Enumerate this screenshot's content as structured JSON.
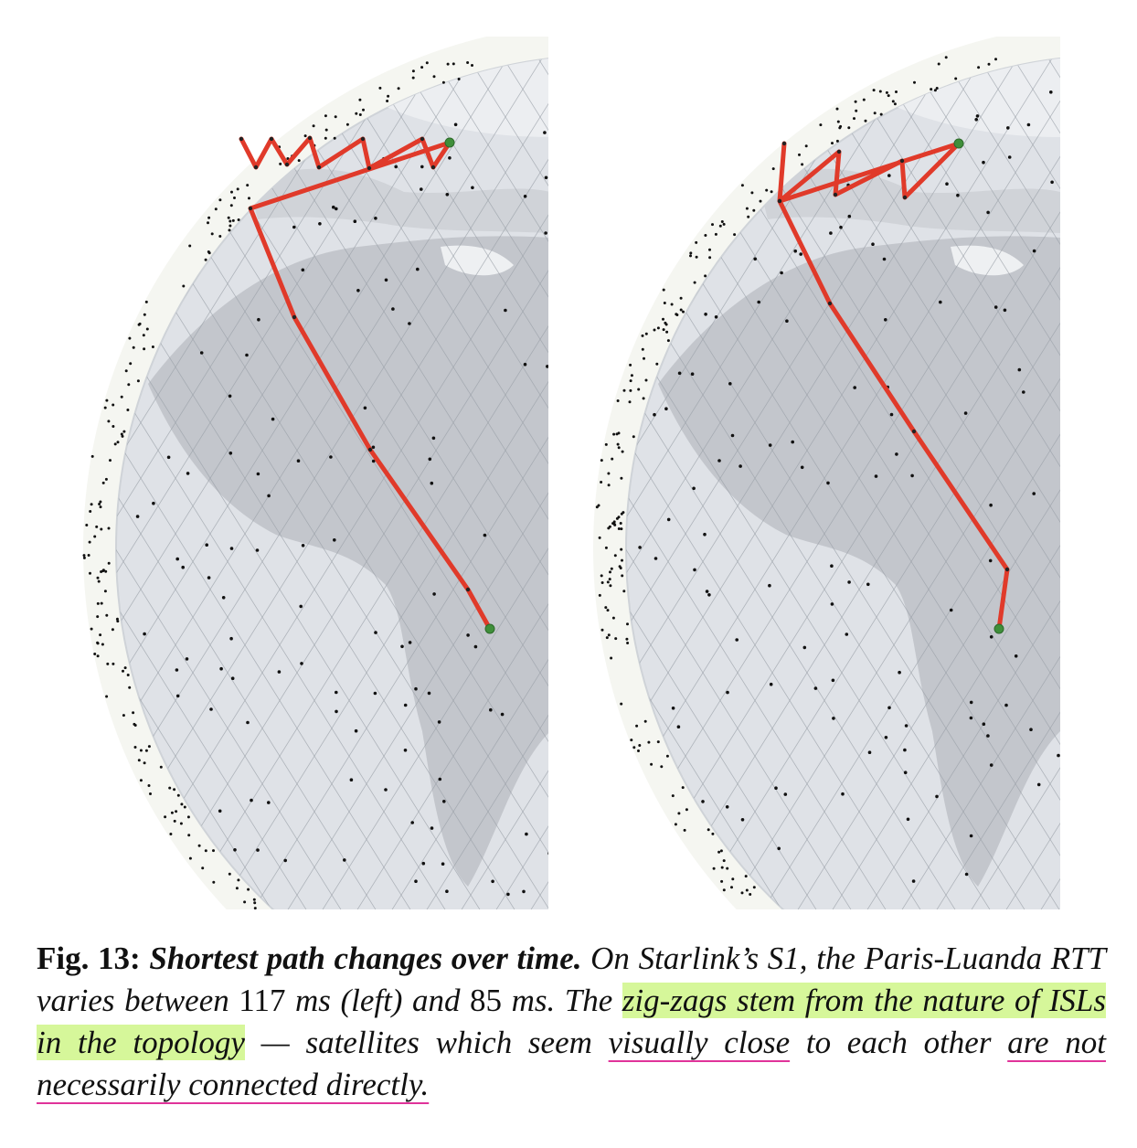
{
  "figure": {
    "panels": [
      {
        "name": "left",
        "variant": "zigzag-long",
        "rtt_label": "117 ms"
      },
      {
        "name": "right",
        "variant": "zigzag-short",
        "rtt_label": "85 ms"
      }
    ],
    "colors": {
      "path": "#e03a2a",
      "endpoint": "#3f8f3a",
      "globe": "#dfe2e7",
      "land": "#c3c6cc",
      "grid": "#9aa0a8",
      "satellite": "#111111"
    }
  },
  "caption": {
    "fig_label": "Fig. 13:",
    "title": "Shortest path changes over time.",
    "text_1": "On Starlink’s S1, the Paris-Luanda RTT varies between",
    "value_1": "117",
    "unit_1": "ms (left) and",
    "value_2": "85",
    "unit_2": "ms. The",
    "highlight": "zig-zags stem from the nature of ISLs in the topology",
    "text_2": "— satellites which seem",
    "underline_1": "visually close",
    "text_3": "to each other",
    "underline_2": "are not necessarily connected directly."
  }
}
